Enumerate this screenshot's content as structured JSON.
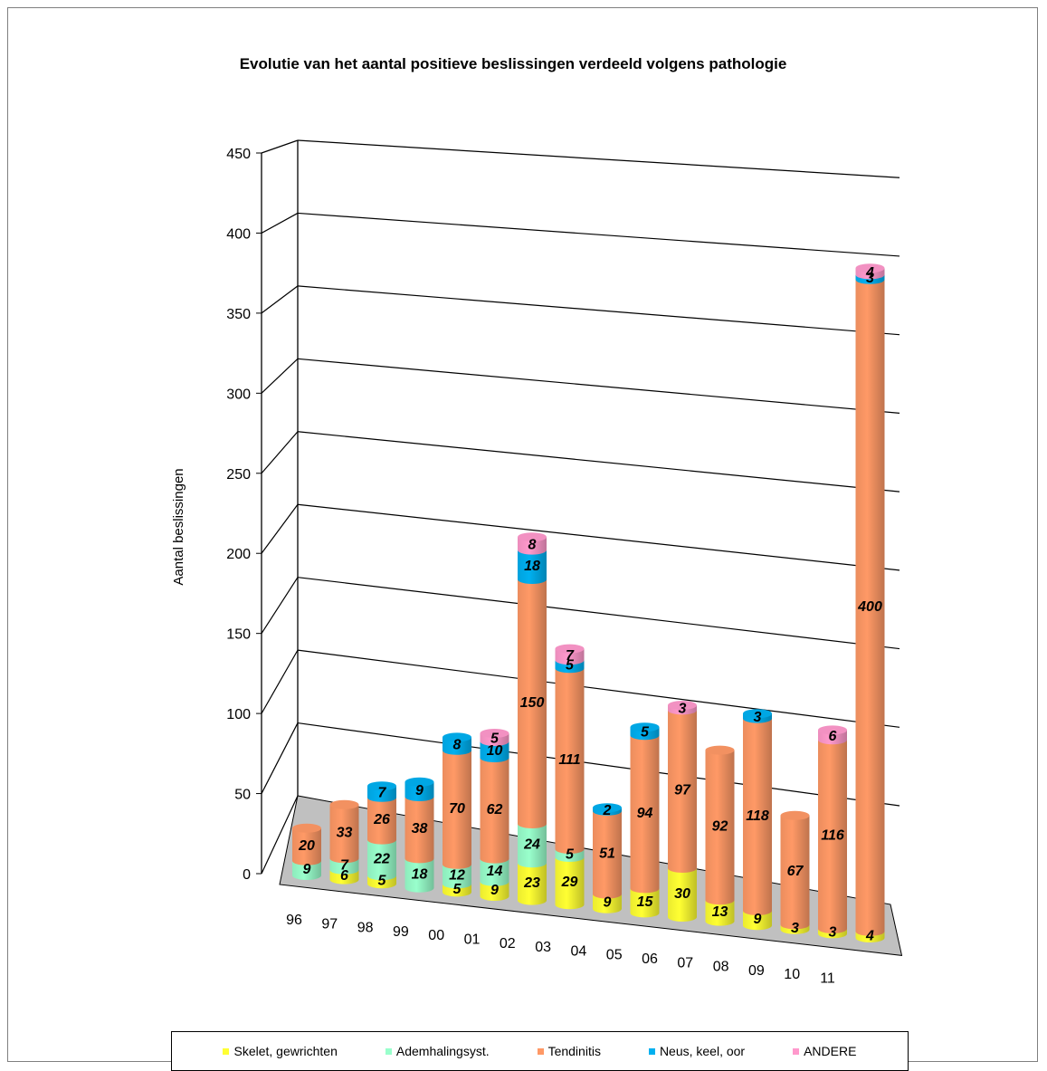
{
  "chart_data": {
    "type": "bar",
    "stacked": true,
    "style": "3d-cylinder",
    "title": "Evolutie van het aantal positieve beslissingen verdeeld volgens pathologie",
    "xlabel": "",
    "ylabel": "Aantal beslissingen",
    "ylim": [
      0,
      450
    ],
    "yticks": [
      0,
      50,
      100,
      150,
      200,
      250,
      300,
      350,
      400,
      450
    ],
    "grid": true,
    "legend_position": "bottom",
    "categories": [
      "96",
      "97",
      "98",
      "99",
      "00",
      "01",
      "02",
      "03",
      "04",
      "05",
      "06",
      "07",
      "08",
      "09",
      "10",
      "11"
    ],
    "series": [
      {
        "name": "Skelet, gewrichten",
        "color": "#ffff33",
        "values": [
          0,
          6,
          5,
          0,
          5,
          9,
          23,
          29,
          9,
          15,
          30,
          13,
          9,
          3,
          3,
          4
        ],
        "labels": [
          "",
          "6",
          "5",
          "",
          "5",
          "9",
          "23",
          "29",
          "9",
          "15",
          "30",
          "13",
          "9",
          "3",
          "3",
          "4"
        ]
      },
      {
        "name": "Ademhalingsyst.",
        "color": "#99ffcc",
        "values": [
          9,
          7,
          22,
          18,
          12,
          14,
          24,
          5,
          0,
          0,
          0,
          0,
          0,
          0,
          0,
          0
        ],
        "labels": [
          "9",
          "7",
          "22",
          "18",
          "12",
          "14",
          "24",
          "5",
          "",
          "",
          "",
          "",
          "",
          "",
          "",
          ""
        ]
      },
      {
        "name": "Tendinitis",
        "color": "#ff9966",
        "values": [
          20,
          33,
          26,
          38,
          70,
          62,
          150,
          111,
          51,
          94,
          97,
          92,
          118,
          67,
          116,
          400
        ],
        "labels": [
          "20",
          "33",
          "26",
          "38",
          "70",
          "62",
          "150",
          "111",
          "51",
          "94",
          "97",
          "92",
          "118",
          "67",
          "116",
          "400"
        ]
      },
      {
        "name": "Neus, keel, oor",
        "color": "#00b0f0",
        "values": [
          0,
          0,
          7,
          9,
          8,
          10,
          18,
          5,
          2,
          5,
          0,
          0,
          3,
          0,
          0,
          3
        ],
        "labels": [
          "",
          "",
          "7",
          "9",
          "8",
          "10",
          "18",
          "5",
          "2",
          "5",
          "",
          "",
          "3",
          "",
          "",
          "3"
        ]
      },
      {
        "name": "ANDERE",
        "color": "#ff99cc",
        "values": [
          0,
          0,
          0,
          0,
          0,
          5,
          8,
          7,
          0,
          0,
          3,
          0,
          0,
          0,
          6,
          4
        ],
        "labels": [
          "",
          "",
          "",
          "",
          "",
          "5",
          "8",
          "7",
          "",
          "",
          "3",
          "",
          "",
          "",
          "6",
          "4"
        ]
      }
    ]
  }
}
